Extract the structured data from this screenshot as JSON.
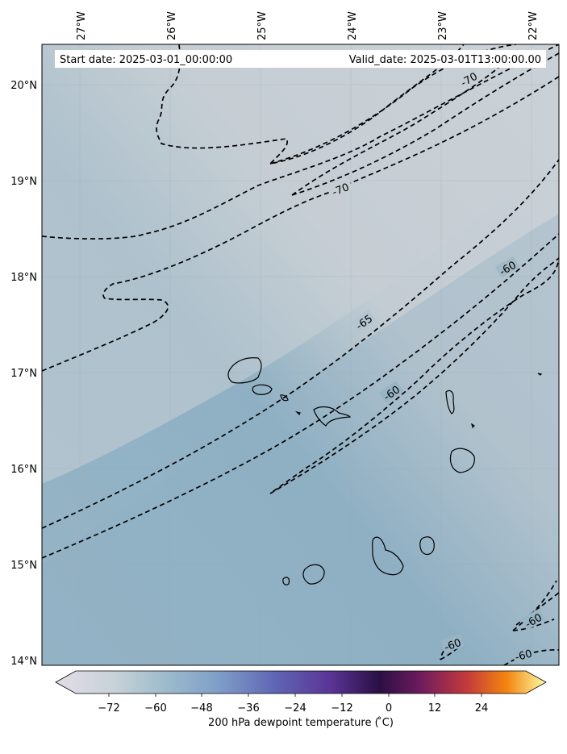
{
  "header": {
    "start_date": "Start date: 2025-03-01_00:00:00",
    "valid_date": "Valid_date: 2025-03-01T13:00:00.00"
  },
  "map": {
    "lon_labels": [
      "27°W",
      "26°W",
      "25°W",
      "24°W",
      "23°W",
      "22°W"
    ],
    "lat_labels": [
      "20°N",
      "19°N",
      "18°N",
      "17°N",
      "16°N",
      "15°N",
      "14°N"
    ],
    "contour_labels": [
      "-70",
      "-70",
      "-65",
      "-60",
      "-60",
      "-60",
      "-60",
      "-60"
    ]
  },
  "colorbar": {
    "label": "200 hPa dewpoint temperature ($^\\circ$C)",
    "label_display": "200 hPa dewpoint temperature ( ̊C)",
    "ticks": [
      "−72",
      "−60",
      "−48",
      "−36",
      "−24",
      "−12",
      "0",
      "12",
      "24"
    ]
  },
  "colors": {
    "map_light": "#c8d0d6",
    "map_mid": "#a9bfcb",
    "map_dark": "#8fb0c4"
  }
}
